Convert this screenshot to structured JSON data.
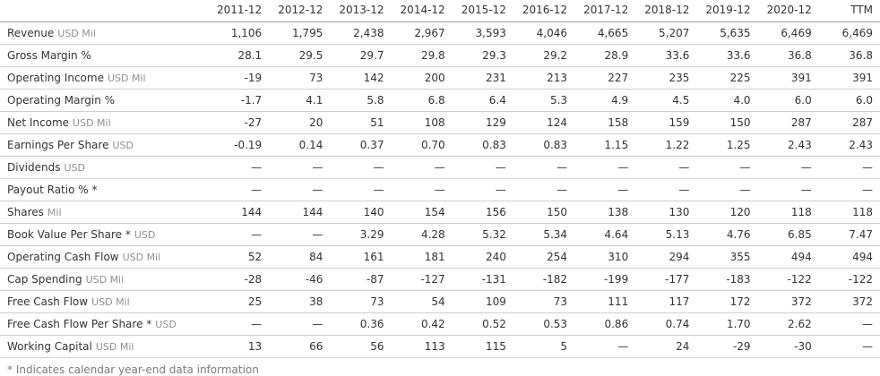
{
  "table": {
    "columns": [
      "2011-12",
      "2012-12",
      "2013-12",
      "2014-12",
      "2015-12",
      "2016-12",
      "2017-12",
      "2018-12",
      "2019-12",
      "2020-12",
      "TTM"
    ],
    "rows": [
      {
        "label": "Revenue",
        "unit": "USD Mil",
        "values": [
          "1,106",
          "1,795",
          "2,438",
          "2,967",
          "3,593",
          "4,046",
          "4,665",
          "5,207",
          "5,635",
          "6,469",
          "6,469"
        ]
      },
      {
        "label": "Gross Margin %",
        "unit": "",
        "values": [
          "28.1",
          "29.5",
          "29.7",
          "29.8",
          "29.3",
          "29.2",
          "28.9",
          "33.6",
          "33.6",
          "36.8",
          "36.8"
        ]
      },
      {
        "label": "Operating Income",
        "unit": "USD Mil",
        "values": [
          "-19",
          "73",
          "142",
          "200",
          "231",
          "213",
          "227",
          "235",
          "225",
          "391",
          "391"
        ]
      },
      {
        "label": "Operating Margin %",
        "unit": "",
        "values": [
          "-1.7",
          "4.1",
          "5.8",
          "6.8",
          "6.4",
          "5.3",
          "4.9",
          "4.5",
          "4.0",
          "6.0",
          "6.0"
        ]
      },
      {
        "label": "Net Income",
        "unit": "USD Mil",
        "values": [
          "-27",
          "20",
          "51",
          "108",
          "129",
          "124",
          "158",
          "159",
          "150",
          "287",
          "287"
        ]
      },
      {
        "label": "Earnings Per Share",
        "unit": "USD",
        "values": [
          "-0.19",
          "0.14",
          "0.37",
          "0.70",
          "0.83",
          "0.83",
          "1.15",
          "1.22",
          "1.25",
          "2.43",
          "2.43"
        ]
      },
      {
        "label": "Dividends",
        "unit": "USD",
        "values": [
          "—",
          "—",
          "—",
          "—",
          "—",
          "—",
          "—",
          "—",
          "—",
          "—",
          "—"
        ]
      },
      {
        "label": "Payout Ratio % *",
        "unit": "",
        "values": [
          "—",
          "—",
          "—",
          "—",
          "—",
          "—",
          "—",
          "—",
          "—",
          "—",
          "—"
        ]
      },
      {
        "label": "Shares",
        "unit": "Mil",
        "values": [
          "144",
          "144",
          "140",
          "154",
          "156",
          "150",
          "138",
          "130",
          "120",
          "118",
          "118"
        ]
      },
      {
        "label": "Book Value Per Share *",
        "unit": "USD",
        "values": [
          "—",
          "—",
          "3.29",
          "4.28",
          "5.32",
          "5.34",
          "4.64",
          "5.13",
          "4.76",
          "6.85",
          "7.47"
        ]
      },
      {
        "label": "Operating Cash Flow",
        "unit": "USD Mil",
        "values": [
          "52",
          "84",
          "161",
          "181",
          "240",
          "254",
          "310",
          "294",
          "355",
          "494",
          "494"
        ]
      },
      {
        "label": "Cap Spending",
        "unit": "USD Mil",
        "values": [
          "-28",
          "-46",
          "-87",
          "-127",
          "-131",
          "-182",
          "-199",
          "-177",
          "-183",
          "-122",
          "-122"
        ]
      },
      {
        "label": "Free Cash Flow",
        "unit": "USD Mil",
        "values": [
          "25",
          "38",
          "73",
          "54",
          "109",
          "73",
          "111",
          "117",
          "172",
          "372",
          "372"
        ]
      },
      {
        "label": "Free Cash Flow Per Share *",
        "unit": "USD",
        "values": [
          "—",
          "—",
          "0.36",
          "0.42",
          "0.52",
          "0.53",
          "0.86",
          "0.74",
          "1.70",
          "2.62",
          "—"
        ]
      },
      {
        "label": "Working Capital",
        "unit": "USD Mil",
        "values": [
          "13",
          "66",
          "56",
          "113",
          "115",
          "5",
          "—",
          "24",
          "-29",
          "-30",
          "—"
        ]
      }
    ],
    "footnote": "* Indicates calendar year-end data information"
  },
  "colors": {
    "text": "#333333",
    "unit": "#8f8f8f",
    "row_border": "#cfcfcf",
    "header_border": "#9a9a9a",
    "footnote": "#7a7a7a",
    "background": "#ffffff"
  }
}
